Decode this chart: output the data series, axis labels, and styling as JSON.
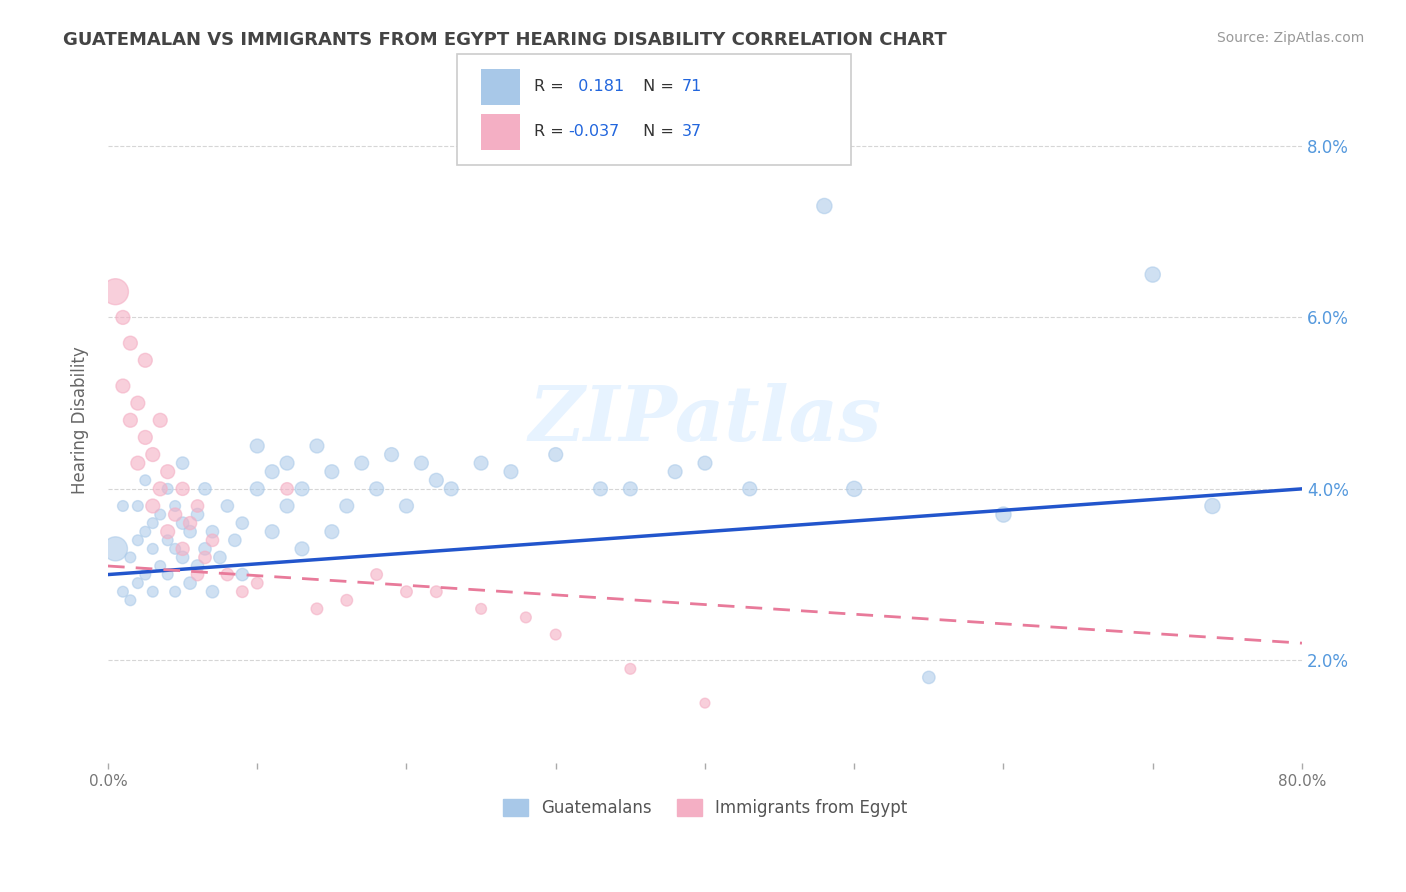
{
  "title": "GUATEMALAN VS IMMIGRANTS FROM EGYPT HEARING DISABILITY CORRELATION CHART",
  "source": "Source: ZipAtlas.com",
  "ylabel": "Hearing Disability",
  "xlim": [
    0.0,
    0.8
  ],
  "ylim": [
    0.008,
    0.088
  ],
  "yticks": [
    0.02,
    0.04,
    0.06,
    0.08
  ],
  "ytick_labels": [
    "2.0%",
    "4.0%",
    "6.0%",
    "8.0%"
  ],
  "xticks": [
    0.0,
    0.1,
    0.2,
    0.3,
    0.4,
    0.5,
    0.6,
    0.7,
    0.8
  ],
  "R_blue": 0.181,
  "N_blue": 71,
  "R_pink": -0.037,
  "N_pink": 37,
  "blue_color": "#a8c8e8",
  "pink_color": "#f4afc4",
  "line_blue": "#2255cc",
  "line_pink": "#e87a9a",
  "watermark": "ZIPatlas",
  "blue_line_x0": 0.0,
  "blue_line_y0": 0.03,
  "blue_line_x1": 0.8,
  "blue_line_y1": 0.04,
  "pink_line_x0": 0.0,
  "pink_line_y0": 0.031,
  "pink_line_x1": 0.8,
  "pink_line_y1": 0.022,
  "blue_scatter_x": [
    0.005,
    0.01,
    0.01,
    0.015,
    0.015,
    0.02,
    0.02,
    0.02,
    0.025,
    0.025,
    0.025,
    0.03,
    0.03,
    0.03,
    0.035,
    0.035,
    0.04,
    0.04,
    0.04,
    0.045,
    0.045,
    0.045,
    0.05,
    0.05,
    0.05,
    0.055,
    0.055,
    0.06,
    0.06,
    0.065,
    0.065,
    0.07,
    0.07,
    0.075,
    0.08,
    0.085,
    0.09,
    0.09,
    0.1,
    0.1,
    0.11,
    0.11,
    0.12,
    0.12,
    0.13,
    0.13,
    0.14,
    0.15,
    0.15,
    0.16,
    0.17,
    0.18,
    0.19,
    0.2,
    0.21,
    0.22,
    0.23,
    0.25,
    0.27,
    0.3,
    0.33,
    0.35,
    0.38,
    0.4,
    0.43,
    0.48,
    0.5,
    0.55,
    0.6,
    0.7,
    0.74
  ],
  "blue_scatter_y": [
    0.033,
    0.028,
    0.038,
    0.032,
    0.027,
    0.034,
    0.029,
    0.038,
    0.03,
    0.035,
    0.041,
    0.028,
    0.033,
    0.036,
    0.031,
    0.037,
    0.03,
    0.034,
    0.04,
    0.028,
    0.033,
    0.038,
    0.032,
    0.036,
    0.043,
    0.029,
    0.035,
    0.031,
    0.037,
    0.033,
    0.04,
    0.028,
    0.035,
    0.032,
    0.038,
    0.034,
    0.03,
    0.036,
    0.04,
    0.045,
    0.035,
    0.042,
    0.038,
    0.043,
    0.033,
    0.04,
    0.045,
    0.035,
    0.042,
    0.038,
    0.043,
    0.04,
    0.044,
    0.038,
    0.043,
    0.041,
    0.04,
    0.043,
    0.042,
    0.044,
    0.04,
    0.04,
    0.042,
    0.043,
    0.04,
    0.073,
    0.04,
    0.018,
    0.037,
    0.065,
    0.038
  ],
  "blue_scatter_size": [
    300,
    60,
    60,
    60,
    60,
    60,
    60,
    60,
    60,
    60,
    60,
    60,
    60,
    60,
    60,
    60,
    60,
    60,
    60,
    60,
    60,
    60,
    80,
    80,
    80,
    80,
    80,
    80,
    80,
    80,
    80,
    80,
    80,
    80,
    80,
    80,
    80,
    80,
    100,
    100,
    100,
    100,
    100,
    100,
    100,
    100,
    100,
    100,
    100,
    100,
    100,
    100,
    100,
    100,
    100,
    100,
    100,
    100,
    100,
    100,
    100,
    100,
    100,
    100,
    100,
    120,
    120,
    80,
    120,
    120,
    120
  ],
  "pink_scatter_x": [
    0.005,
    0.01,
    0.01,
    0.015,
    0.015,
    0.02,
    0.02,
    0.025,
    0.025,
    0.03,
    0.03,
    0.035,
    0.035,
    0.04,
    0.04,
    0.045,
    0.05,
    0.05,
    0.055,
    0.06,
    0.06,
    0.065,
    0.07,
    0.08,
    0.09,
    0.1,
    0.12,
    0.14,
    0.16,
    0.18,
    0.2,
    0.22,
    0.25,
    0.28,
    0.3,
    0.35,
    0.4
  ],
  "pink_scatter_y": [
    0.063,
    0.052,
    0.06,
    0.048,
    0.057,
    0.043,
    0.05,
    0.046,
    0.055,
    0.038,
    0.044,
    0.04,
    0.048,
    0.035,
    0.042,
    0.037,
    0.033,
    0.04,
    0.036,
    0.03,
    0.038,
    0.032,
    0.034,
    0.03,
    0.028,
    0.029,
    0.04,
    0.026,
    0.027,
    0.03,
    0.028,
    0.028,
    0.026,
    0.025,
    0.023,
    0.019,
    0.015
  ],
  "pink_scatter_size": [
    350,
    100,
    100,
    100,
    100,
    100,
    100,
    100,
    100,
    100,
    100,
    100,
    100,
    100,
    100,
    90,
    90,
    90,
    90,
    80,
    80,
    80,
    80,
    80,
    70,
    70,
    80,
    70,
    70,
    70,
    70,
    70,
    60,
    60,
    60,
    60,
    50
  ]
}
